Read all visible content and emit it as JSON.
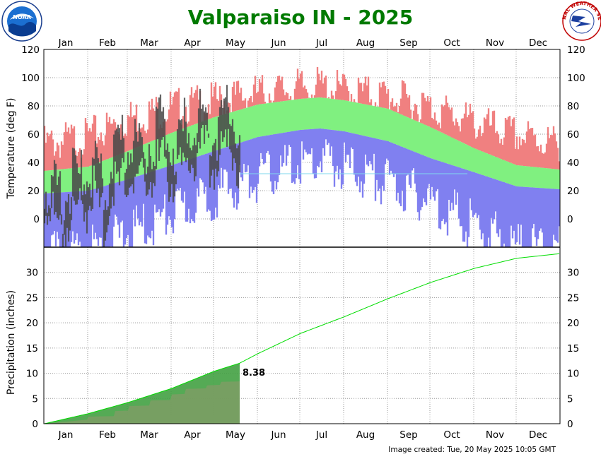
{
  "title": "Valparaiso IN - 2025",
  "footer": "Image created: Tue, 20 May 2025 10:05 GMT",
  "logos": {
    "noaa": "NOAA",
    "nws_text": "NATIONAL WEATHER SERVICE"
  },
  "colors": {
    "record_high": "#f08080",
    "normal_band": "#80f080",
    "record_low": "#8080f0",
    "observed_temp": "#4a4a4a",
    "observed_precip": "#b09a82",
    "normal_precip_ytd": "#40a040",
    "normal_precip_line": "#00dd00",
    "title": "#007a00"
  },
  "chart_data": [
    {
      "type": "bar",
      "name": "temperature",
      "ylabel": "Temperature (deg F)",
      "ylim": [
        -20,
        120
      ],
      "yticks": [
        0,
        20,
        40,
        60,
        80,
        100,
        120
      ],
      "months": [
        "Jan",
        "Feb",
        "Mar",
        "Apr",
        "May",
        "Jun",
        "Jul",
        "Aug",
        "Sep",
        "Oct",
        "Nov",
        "Dec"
      ],
      "days_in_year": 365,
      "observed_through_day": 139,
      "freezing_reference_line": 32,
      "grid": true,
      "normal_high_anchors": {
        "day": [
          1,
          32,
          60,
          91,
          121,
          152,
          182,
          196,
          213,
          244,
          274,
          305,
          335,
          365
        ],
        "value": [
          34,
          37,
          48,
          61,
          72,
          81,
          85,
          86,
          84,
          78,
          65,
          50,
          38,
          35
        ]
      },
      "normal_low_anchors": {
        "day": [
          1,
          32,
          60,
          91,
          121,
          152,
          182,
          196,
          213,
          244,
          274,
          305,
          335,
          365
        ],
        "value": [
          18,
          20,
          28,
          38,
          48,
          58,
          63,
          64,
          62,
          55,
          43,
          33,
          23,
          21
        ]
      },
      "record_high_anchors": {
        "day": [
          1,
          32,
          60,
          91,
          121,
          152,
          182,
          196,
          213,
          244,
          274,
          305,
          335,
          365
        ],
        "value": [
          60,
          65,
          78,
          86,
          90,
          96,
          100,
          101,
          98,
          94,
          86,
          75,
          66,
          60
        ]
      },
      "record_low_anchors": {
        "day": [
          1,
          32,
          60,
          91,
          121,
          152,
          182,
          196,
          213,
          244,
          274,
          305,
          335,
          365
        ],
        "value": [
          -18,
          -14,
          -2,
          12,
          26,
          38,
          48,
          50,
          46,
          35,
          22,
          4,
          -10,
          -14
        ]
      },
      "observed_days": {
        "day": [
          1,
          8,
          15,
          22,
          29,
          36,
          43,
          50,
          57,
          64,
          71,
          78,
          85,
          92,
          99,
          106,
          113,
          120,
          127,
          134,
          139
        ],
        "high": [
          38,
          30,
          24,
          42,
          40,
          50,
          28,
          58,
          64,
          70,
          56,
          72,
          80,
          62,
          74,
          82,
          86,
          70,
          84,
          88,
          62
        ],
        "low": [
          20,
          10,
          2,
          18,
          16,
          28,
          8,
          30,
          36,
          44,
          34,
          46,
          50,
          34,
          44,
          54,
          60,
          48,
          58,
          64,
          44
        ]
      }
    },
    {
      "type": "area",
      "name": "precipitation",
      "ylabel": "Precipitation (inches)",
      "ylim": [
        0,
        35
      ],
      "yticks": [
        0,
        5,
        10,
        15,
        20,
        25,
        30
      ],
      "observed_total": "8.38",
      "observed_through_day": 139,
      "normal_cumulative": {
        "day": [
          1,
          32,
          60,
          91,
          121,
          139,
          152,
          182,
          213,
          244,
          274,
          305,
          335,
          365
        ],
        "value": [
          0,
          2.0,
          4.2,
          7.0,
          10.4,
          12.0,
          13.9,
          17.9,
          21.2,
          24.8,
          28.0,
          30.8,
          32.8,
          33.7
        ]
      },
      "observed_cumulative": {
        "day": [
          1,
          31,
          32,
          50,
          51,
          60,
          61,
          75,
          76,
          90,
          91,
          100,
          101,
          115,
          116,
          125,
          126,
          139
        ],
        "value": [
          0,
          0.8,
          1.4,
          1.5,
          2.5,
          2.6,
          3.5,
          3.6,
          4.6,
          4.7,
          5.8,
          5.9,
          6.9,
          7.0,
          7.6,
          7.7,
          8.3,
          8.38
        ]
      }
    }
  ]
}
